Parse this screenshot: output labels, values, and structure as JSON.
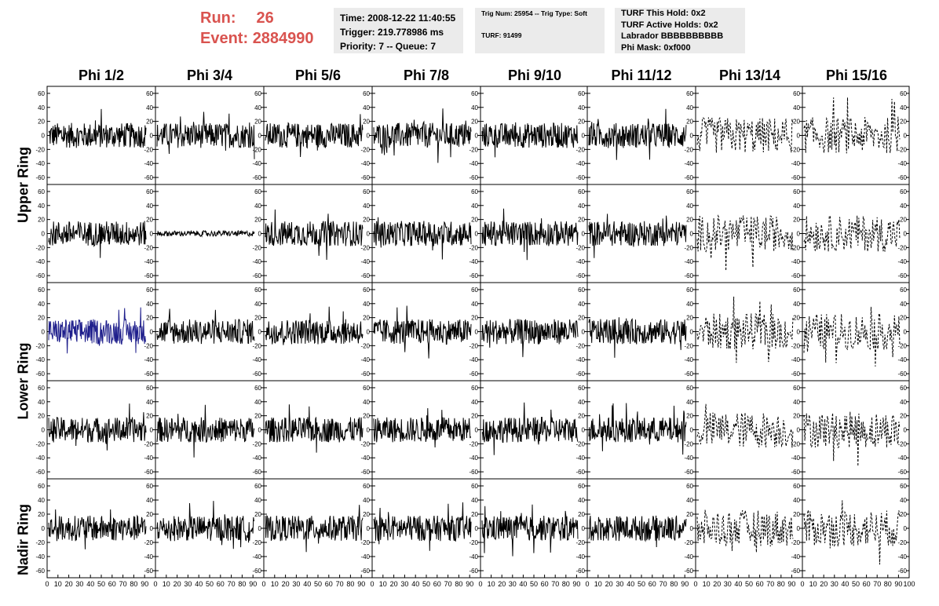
{
  "run_label": "Run:",
  "run_value": "26",
  "event_label": "Event:",
  "event_value": "2884990",
  "time_box": {
    "time": "Time: 2008-12-22 11:40:55",
    "trigger": "Trigger: 219.778986 ms",
    "priority": "Priority: 7 -- Queue: 7"
  },
  "trig_box": {
    "trig": "Trig Num: 25954 -- Trig Type: Soft",
    "turf": "TURF: 91499"
  },
  "turf_box": {
    "this_hold": "TURF This Hold: 0x2",
    "active_holds": "TURF Active Holds: 0x2",
    "labrador": "Labrador BBBBBBBBBB",
    "phi_mask": "Phi Mask: 0xf000"
  },
  "columns": [
    "Phi 1/2",
    "Phi 3/4",
    "Phi 5/6",
    "Phi 7/8",
    "Phi 9/10",
    "Phi 11/12",
    "Phi 13/14",
    "Phi 15/16"
  ],
  "rows": [
    "Upper Ring",
    "Lower Ring",
    "Nadir Ring"
  ],
  "y_ticks": [
    "60",
    "40",
    "20",
    "0",
    "-20",
    "-40",
    "-60"
  ],
  "x_ticks": [
    "0",
    "10",
    "20",
    "30",
    "40",
    "50",
    "60",
    "70",
    "80",
    "90",
    "100"
  ],
  "colors": {
    "run": "#d9534f",
    "trace": "#000000",
    "highlight": "#1f1f8c",
    "box": "#ebebeb"
  },
  "highlighted_panel": {
    "row": 2,
    "col": 0
  },
  "dashed_columns": [
    6,
    7
  ]
}
